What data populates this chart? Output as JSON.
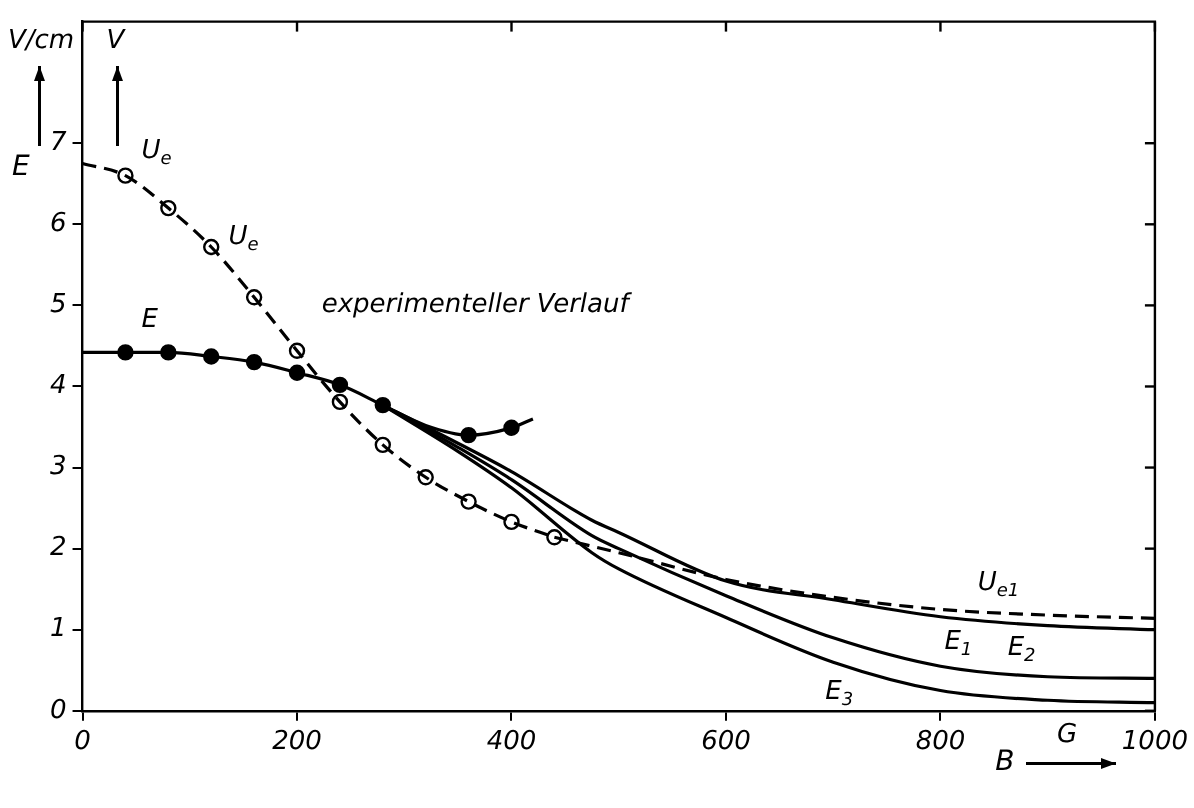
{
  "chart_data": {
    "type": "line",
    "xlabel": "B",
    "ylabel": "E",
    "xlim": [
      0,
      1000
    ],
    "xticks": [
      0,
      200,
      400,
      600,
      800,
      1000
    ],
    "ylim": [
      0,
      8.5
    ],
    "yticks": [
      0,
      1,
      2,
      3,
      4,
      5,
      6,
      7
    ],
    "grid": false,
    "legend": false,
    "series": [
      {
        "type": "line",
        "name": "U$_{e}$",
        "line_style": "dashed",
        "color": "#000000",
        "x": [
          0,
          40,
          80,
          120,
          160,
          200,
          240,
          280,
          320,
          360,
          400,
          440
        ],
        "values": [
          6.75,
          6.6,
          6.2,
          5.72,
          5.1,
          4.44,
          3.81,
          3.28,
          2.88,
          2.58,
          2.33,
          2.14
        ]
      },
      {
        "type": "line",
        "name": "U$_{e1}$",
        "line_style": "dashed",
        "color": "#000000",
        "x": [
          440,
          500,
          600,
          700,
          800,
          900,
          1000
        ],
        "values": [
          2.14,
          1.95,
          1.62,
          1.4,
          1.25,
          1.18,
          1.14
        ]
      },
      {
        "type": "scatter",
        "marker": "circle",
        "color": "#ffffff",
        "x": [
          40,
          80,
          120,
          160,
          200,
          240,
          280,
          320,
          360,
          400,
          440
        ],
        "values": [
          6.6,
          6.2,
          5.72,
          5.1,
          4.44,
          3.81,
          3.28,
          2.88,
          2.58,
          2.33,
          2.14
        ]
      },
      {
        "type": "line",
        "name": "E",
        "line_style": "solid",
        "color": "#000000",
        "x": [
          0,
          40,
          80,
          120,
          160,
          200,
          240,
          280,
          320,
          360,
          400,
          420
        ],
        "values": [
          4.42,
          4.42,
          4.42,
          4.37,
          4.3,
          4.17,
          4.02,
          3.77,
          3.52,
          3.4,
          3.49,
          3.6
        ]
      },
      {
        "type": "scatter",
        "marker": "circle",
        "color": "#000000",
        "x": [
          40,
          80,
          120,
          160,
          200,
          240,
          280,
          360,
          400
        ],
        "values": [
          4.42,
          4.42,
          4.37,
          4.3,
          4.17,
          4.02,
          3.77,
          3.4,
          3.49
        ]
      },
      {
        "type": "line",
        "name": "E$_{1}$",
        "line_style": "solid",
        "color": "#000000",
        "x": [
          280,
          350,
          400,
          475,
          500,
          600,
          700,
          800,
          900,
          1000
        ],
        "values": [
          3.77,
          3.3,
          2.95,
          2.35,
          2.2,
          1.6,
          1.37,
          1.16,
          1.05,
          1.0
        ]
      },
      {
        "type": "line",
        "name": "E$_{2}$",
        "line_style": "solid",
        "color": "#000000",
        "x": [
          280,
          350,
          400,
          475,
          500,
          600,
          700,
          800,
          900,
          1000
        ],
        "values": [
          3.77,
          3.25,
          2.85,
          2.16,
          2.0,
          1.42,
          0.9,
          0.55,
          0.42,
          0.4
        ]
      },
      {
        "type": "line",
        "name": "E$_{3}$",
        "line_style": "solid",
        "color": "#000000",
        "x": [
          280,
          350,
          400,
          475,
          500,
          600,
          700,
          800,
          900,
          1000
        ],
        "values": [
          3.77,
          3.2,
          2.75,
          1.95,
          1.75,
          1.15,
          0.6,
          0.25,
          0.13,
          0.1
        ]
      }
    ],
    "annotations": [
      "V/cm",
      "V",
      "G",
      "U$_{e}$",
      "experimenteller Verlauf"
    ]
  }
}
